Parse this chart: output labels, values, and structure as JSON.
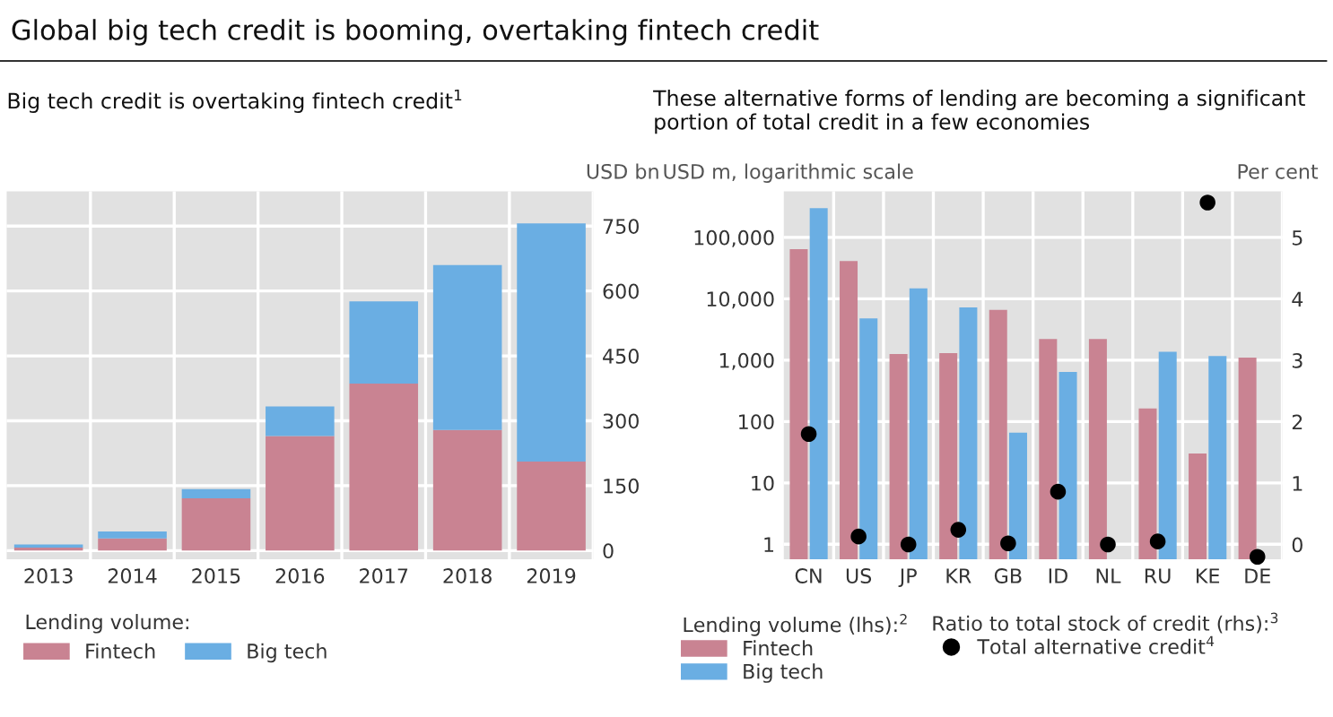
{
  "chart_data": [
    {
      "type": "bar",
      "title": "Global big tech credit is booming, overtaking fintech credit",
      "subtitle": "Big tech credit is overtaking fintech credit$^{1}$",
      "ylabel": "USD bn",
      "legend_title": "Lending volume:",
      "categories": [
        "2013",
        "2014",
        "2015",
        "2016",
        "2017",
        "2018",
        "2019"
      ],
      "stacked": true,
      "series": [
        {
          "name": "Fintech",
          "color": "#c98392",
          "values": [
            7,
            28,
            121,
            265,
            386,
            279,
            206
          ]
        },
        {
          "name": "Big tech",
          "color": "#6aaee3",
          "values": [
            7,
            16,
            21,
            68,
            190,
            381,
            550
          ]
        }
      ],
      "ylim": [
        -20,
        830
      ],
      "yticks": [
        0,
        150,
        300,
        450,
        600,
        750
      ],
      "grid": true,
      "legend": "bottom"
    },
    {
      "type": "bar",
      "subtitle": "These alternative forms of lending are becoming a significant portion of total credit in a few economies",
      "ylabel": "USD m, logarithmic scale",
      "y2label": "Per cent",
      "legend_title": "Lending volume (lhs):$^{2}$",
      "annotations": [
        "Ratio to total stock of credit (rhs):$^{3}$"
      ],
      "categories": [
        "CN",
        "US",
        "JP",
        "KR",
        "GB",
        "ID",
        "NL",
        "RU",
        "KE",
        "DE"
      ],
      "log": "y",
      "series": [
        {
          "name": "Fintech",
          "color": "#c98392",
          "values": [
            64000,
            41000,
            1260,
            1300,
            6600,
            2200,
            2200,
            163,
            30,
            1100
          ]
        },
        {
          "name": "Big tech",
          "color": "#6aaee3",
          "values": [
            300000,
            4800,
            14800,
            7200,
            66,
            640,
            null,
            1370,
            1170,
            null
          ]
        },
        {
          "name": "Total alternative credit$^{4}$",
          "type": "scatter",
          "axis": "y2",
          "marker": "circle",
          "color": "#000000",
          "values": [
            1.8,
            0.13,
            0.0,
            0.24,
            0.02,
            0.86,
            0.0,
            0.05,
            5.57,
            -0.2
          ]
        }
      ],
      "ylim": [
        0.57,
        560000
      ],
      "yticks": [
        1,
        10,
        100,
        {
          "value": 1000,
          "label": "1,000"
        },
        {
          "value": 10000,
          "label": "10,000"
        },
        {
          "value": 100000,
          "label": "100,000"
        }
      ],
      "y2lim": [
        -0.24,
        5.75
      ],
      "y2ticks": [
        0,
        1,
        2,
        3,
        4,
        5
      ],
      "grid": true,
      "legend": "bottom"
    }
  ]
}
